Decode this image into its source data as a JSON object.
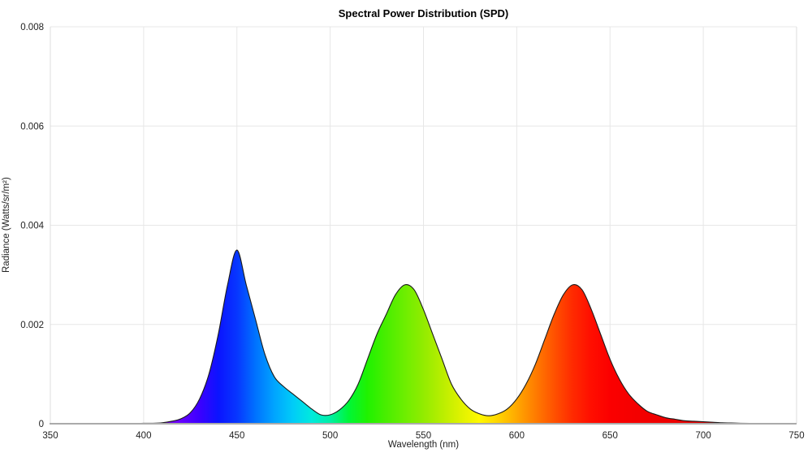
{
  "page": {
    "background": "#ffffff"
  },
  "colors": {
    "grid": "#e7e7e7",
    "spine": "#dcdcdc",
    "axis_line": "#ababab",
    "tick_text": "#222222",
    "title_text": "#000000"
  },
  "chart_data": {
    "type": "area",
    "title": "Spectral Power Distribution (SPD)",
    "xlabel": "Wavelength (nm)",
    "ylabel": "Radiance (Watts/sr/m²)",
    "xlim": [
      350,
      750
    ],
    "ylim": [
      0,
      0.008
    ],
    "x_ticks": [
      350,
      400,
      450,
      500,
      550,
      600,
      650,
      700,
      750
    ],
    "y_ticks": [
      0,
      0.002,
      0.004,
      0.006,
      0.008
    ],
    "y_tick_labels": [
      "0",
      "0.002",
      "0.004",
      "0.006",
      "0.008"
    ],
    "grid": true,
    "legend": false,
    "fill": "visible-spectrum-gradient",
    "outline_color": "#1a1a1a",
    "peaks": [
      {
        "label": "blue",
        "wavelength_nm": 450,
        "radiance": 0.0035
      },
      {
        "label": "green",
        "wavelength_nm": 538,
        "radiance": 0.0028
      },
      {
        "label": "red",
        "wavelength_nm": 630,
        "radiance": 0.0028
      }
    ],
    "x": [
      380,
      385,
      390,
      395,
      400,
      405,
      410,
      415,
      420,
      425,
      430,
      435,
      440,
      445,
      450,
      455,
      460,
      465,
      470,
      475,
      480,
      485,
      490,
      495,
      500,
      505,
      510,
      515,
      520,
      525,
      530,
      535,
      540,
      545,
      550,
      555,
      560,
      565,
      570,
      575,
      580,
      585,
      590,
      595,
      600,
      605,
      610,
      615,
      620,
      625,
      630,
      635,
      640,
      645,
      650,
      655,
      660,
      665,
      670,
      675,
      680,
      685,
      690,
      695,
      700,
      705,
      710,
      715,
      720,
      725,
      730,
      735,
      740,
      745,
      750
    ],
    "y": [
      0,
      0,
      0,
      5e-06,
      1e-05,
      1e-05,
      2e-05,
      5e-05,
      0.0001,
      0.00022,
      0.0005,
      0.001,
      0.0018,
      0.0028,
      0.0035,
      0.0028,
      0.0021,
      0.0014,
      0.00095,
      0.00075,
      0.0006,
      0.00045,
      0.0003,
      0.00018,
      0.00018,
      0.00028,
      0.00047,
      0.0008,
      0.0013,
      0.0018,
      0.0022,
      0.0026,
      0.0028,
      0.0027,
      0.0023,
      0.0018,
      0.0013,
      0.0008,
      0.0005,
      0.0003,
      0.0002,
      0.00016,
      0.0002,
      0.0003,
      0.0005,
      0.0008,
      0.0012,
      0.0017,
      0.0022,
      0.0026,
      0.0028,
      0.0027,
      0.0023,
      0.0018,
      0.0013,
      0.0009,
      0.0006,
      0.0004,
      0.00025,
      0.00018,
      0.00012,
      9e-05,
      6e-05,
      5e-05,
      4e-05,
      3e-05,
      2e-05,
      1.5e-05,
      1e-05,
      8e-06,
      5e-06,
      3e-06,
      2e-06,
      1e-06,
      0
    ],
    "spectrum_stops": [
      {
        "nm": 380,
        "c": "#5c0066"
      },
      {
        "nm": 390,
        "c": "#6f0090"
      },
      {
        "nm": 400,
        "c": "#7c00b8"
      },
      {
        "nm": 410,
        "c": "#7a00dc"
      },
      {
        "nm": 420,
        "c": "#6600ff"
      },
      {
        "nm": 430,
        "c": "#3b00ff"
      },
      {
        "nm": 440,
        "c": "#0b14ff"
      },
      {
        "nm": 450,
        "c": "#0736ff"
      },
      {
        "nm": 460,
        "c": "#0072ff"
      },
      {
        "nm": 470,
        "c": "#00a4ff"
      },
      {
        "nm": 480,
        "c": "#00ccf8"
      },
      {
        "nm": 490,
        "c": "#00eadd"
      },
      {
        "nm": 500,
        "c": "#00efa4"
      },
      {
        "nm": 510,
        "c": "#00f636"
      },
      {
        "nm": 520,
        "c": "#20f200"
      },
      {
        "nm": 530,
        "c": "#49ee00"
      },
      {
        "nm": 540,
        "c": "#6dee00"
      },
      {
        "nm": 550,
        "c": "#92ec00"
      },
      {
        "nm": 560,
        "c": "#b9ee00"
      },
      {
        "nm": 570,
        "c": "#dff200"
      },
      {
        "nm": 580,
        "c": "#fff800"
      },
      {
        "nm": 590,
        "c": "#ffd400"
      },
      {
        "nm": 600,
        "c": "#ffa800"
      },
      {
        "nm": 610,
        "c": "#ff7c00"
      },
      {
        "nm": 620,
        "c": "#ff5200"
      },
      {
        "nm": 630,
        "c": "#ff2a00"
      },
      {
        "nm": 640,
        "c": "#ff0e00"
      },
      {
        "nm": 650,
        "c": "#fb0000"
      },
      {
        "nm": 660,
        "c": "#f60000"
      },
      {
        "nm": 670,
        "c": "#f20000"
      },
      {
        "nm": 680,
        "c": "#ee0000"
      },
      {
        "nm": 690,
        "c": "#e90000"
      },
      {
        "nm": 700,
        "c": "#e20000"
      },
      {
        "nm": 710,
        "c": "#d00000"
      },
      {
        "nm": 720,
        "c": "#b80000"
      },
      {
        "nm": 730,
        "c": "#9e0000"
      },
      {
        "nm": 740,
        "c": "#820000"
      },
      {
        "nm": 750,
        "c": "#660000"
      }
    ]
  }
}
